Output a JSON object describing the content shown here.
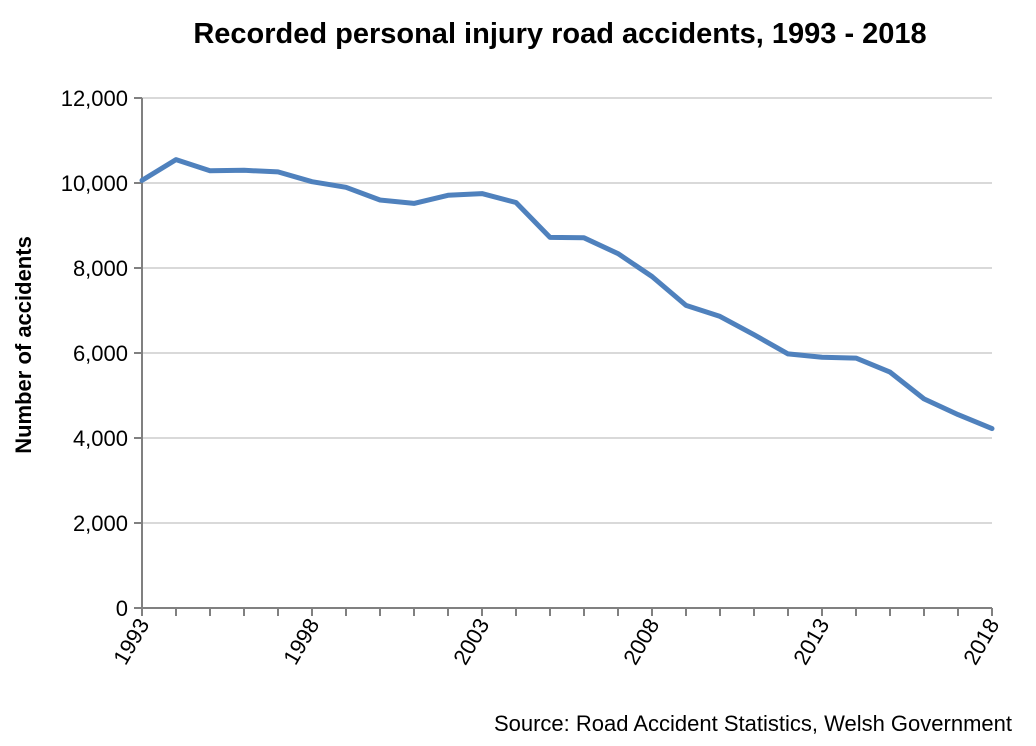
{
  "chart_data": {
    "type": "line",
    "title": "Recorded personal injury road accidents, 1993 - 2018",
    "xlabel": "",
    "ylabel": "Number of accidents",
    "source": "Source: Road Accident Statistics, Welsh Government",
    "x": [
      1993,
      1994,
      1995,
      1996,
      1997,
      1998,
      1999,
      2000,
      2001,
      2002,
      2003,
      2004,
      2005,
      2006,
      2007,
      2008,
      2009,
      2010,
      2011,
      2012,
      2013,
      2014,
      2015,
      2016,
      2017,
      2018
    ],
    "series": [
      {
        "name": "Recorded personal injury road accidents",
        "color": "#4f81bd",
        "values": [
          10060,
          10550,
          10290,
          10300,
          10260,
          10030,
          9900,
          9600,
          9520,
          9710,
          9750,
          9540,
          8720,
          8710,
          8340,
          7800,
          7120,
          6860,
          6430,
          5980,
          5900,
          5880,
          5550,
          4920,
          4550,
          4220
        ]
      }
    ],
    "xticks": [
      "1993",
      "1998",
      "2003",
      "2008",
      "2013",
      "2018"
    ],
    "xtick_values": [
      1993,
      1998,
      2003,
      2008,
      2013,
      2018
    ],
    "yticks": [
      "0",
      "2,000",
      "4,000",
      "6,000",
      "8,000",
      "10,000",
      "12,000"
    ],
    "ytick_values": [
      0,
      2000,
      4000,
      6000,
      8000,
      10000,
      12000
    ],
    "xlim": [
      1993,
      2018
    ],
    "ylim": [
      0,
      12000
    ],
    "grid": "horizontal",
    "legend": "none"
  }
}
